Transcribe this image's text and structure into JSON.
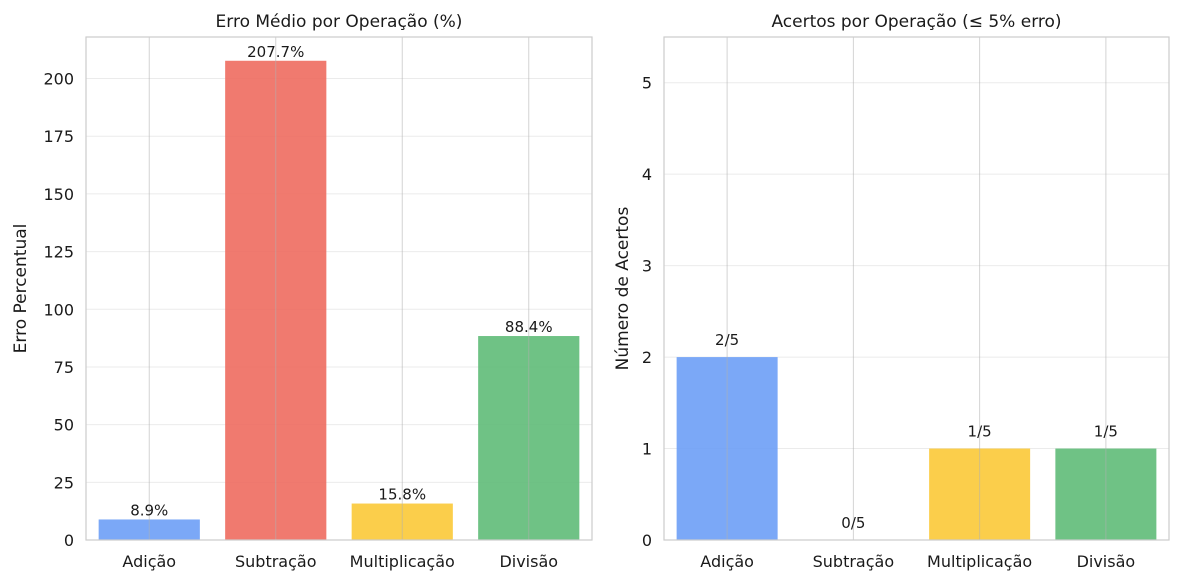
{
  "chart_data": [
    {
      "type": "bar",
      "title": "Erro Médio por Operação (%)",
      "xlabel": "",
      "ylabel": "Erro Percentual",
      "categories": [
        "Adição",
        "Subtração",
        "Multiplicação",
        "Divisão"
      ],
      "values": [
        8.9,
        207.7,
        15.8,
        88.4
      ],
      "data_labels": [
        "8.9%",
        "207.7%",
        "15.8%",
        "88.4%"
      ],
      "colors": [
        "#6d9ef6",
        "#ee6b5f",
        "#fbc937",
        "#5fbb78"
      ],
      "ylim": [
        0,
        218
      ],
      "yticks": [
        0,
        25,
        50,
        75,
        100,
        125,
        150,
        175,
        200
      ],
      "grid": true,
      "legend": "none"
    },
    {
      "type": "bar",
      "title": "Acertos por Operação (≤ 5% erro)",
      "xlabel": "",
      "ylabel": "Número de Acertos",
      "categories": [
        "Adição",
        "Subtração",
        "Multiplicação",
        "Divisão"
      ],
      "values": [
        2,
        0,
        1,
        1
      ],
      "data_labels": [
        "2/5",
        "0/5",
        "1/5",
        "1/5"
      ],
      "colors": [
        "#6d9ef6",
        "#ee6b5f",
        "#fbc937",
        "#5fbb78"
      ],
      "ylim": [
        0,
        5.5
      ],
      "yticks": [
        0,
        1,
        2,
        3,
        4,
        5
      ],
      "grid": true,
      "legend": "none"
    }
  ]
}
